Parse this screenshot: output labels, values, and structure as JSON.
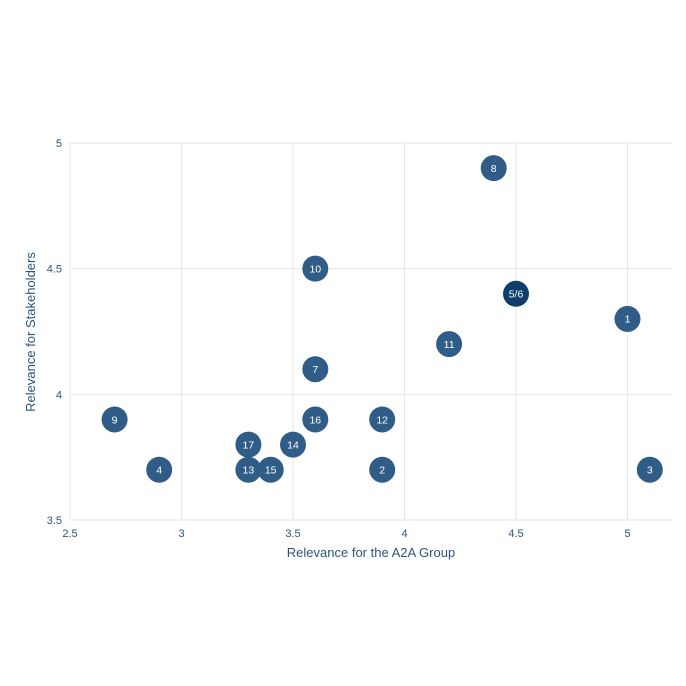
{
  "chart_data": {
    "type": "scatter",
    "title": "",
    "xlabel": "Relevance for the A2A Group",
    "ylabel": "Relevance for Stakeholders",
    "xlim": [
      2.5,
      5.2
    ],
    "ylim": [
      3.5,
      5
    ],
    "xticks": [
      2.5,
      3,
      3.5,
      4,
      4.5,
      5
    ],
    "xtick_labels": [
      "2.5",
      "3",
      "3.5",
      "4",
      "4.5",
      "5"
    ],
    "yticks": [
      3.5,
      4,
      4.5,
      5
    ],
    "ytick_labels": [
      "3.5",
      "4",
      "4.5",
      "5"
    ],
    "grid": true,
    "legend": false,
    "colors": {
      "marker": "#2f5d87",
      "marker_highlight": "#0f3e6b",
      "label": "#ffffff",
      "axis_text": "#2b557c",
      "grid": "#e6e6e6"
    },
    "points": [
      {
        "label": "1",
        "x": 5.0,
        "y": 4.3
      },
      {
        "label": "2",
        "x": 3.9,
        "y": 3.7
      },
      {
        "label": "3",
        "x": 5.1,
        "y": 3.7
      },
      {
        "label": "4",
        "x": 2.9,
        "y": 3.7
      },
      {
        "label": "5/6",
        "x": 4.5,
        "y": 4.4,
        "highlight": true
      },
      {
        "label": "7",
        "x": 3.6,
        "y": 4.1
      },
      {
        "label": "8",
        "x": 4.4,
        "y": 4.9
      },
      {
        "label": "9",
        "x": 2.7,
        "y": 3.9
      },
      {
        "label": "10",
        "x": 3.6,
        "y": 4.5
      },
      {
        "label": "11",
        "x": 4.2,
        "y": 4.2
      },
      {
        "label": "12",
        "x": 3.9,
        "y": 3.9
      },
      {
        "label": "13",
        "x": 3.3,
        "y": 3.7
      },
      {
        "label": "14",
        "x": 3.5,
        "y": 3.8
      },
      {
        "label": "15",
        "x": 3.4,
        "y": 3.7
      },
      {
        "label": "16",
        "x": 3.6,
        "y": 3.9
      },
      {
        "label": "17",
        "x": 3.3,
        "y": 3.8
      }
    ]
  }
}
